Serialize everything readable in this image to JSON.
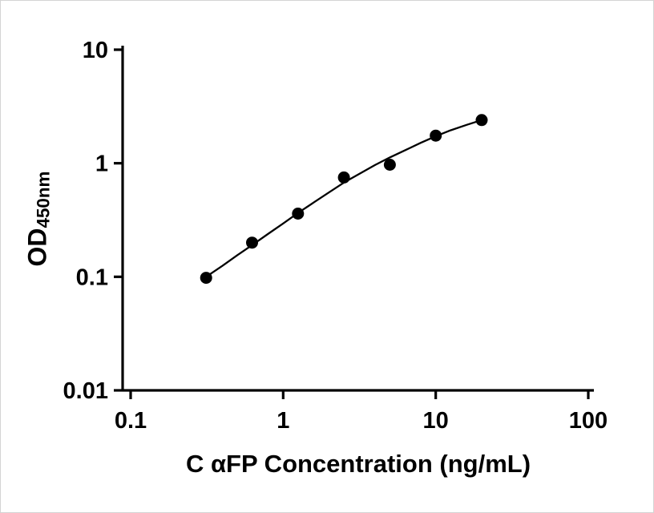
{
  "chart_data": {
    "type": "scatter",
    "title": "",
    "xlabel": "C αFP Concentration (ng/mL)",
    "ylabel_main": "OD",
    "ylabel_sub": "450nm",
    "x_scale": "log",
    "y_scale": "log",
    "xlim": [
      0.1,
      100
    ],
    "ylim": [
      0.01,
      10
    ],
    "x_ticks": [
      0.1,
      1,
      10,
      100
    ],
    "x_tick_labels": [
      "0.1",
      "1",
      "10",
      "100"
    ],
    "y_ticks": [
      0.01,
      0.1,
      1,
      10
    ],
    "y_tick_labels": [
      "0.01",
      "0.1",
      "1",
      "10"
    ],
    "grid": false,
    "legend": "none",
    "series": [
      {
        "name": "standard curve data points",
        "x": [
          0.3125,
          0.625,
          1.25,
          2.5,
          5,
          10,
          20
        ],
        "y": [
          0.098,
          0.2,
          0.36,
          0.75,
          0.97,
          1.75,
          2.4
        ],
        "marker": "filled-circle",
        "marker_color": "#000000"
      }
    ],
    "fit_curve": {
      "name": "fitted curve",
      "color": "#000000",
      "x": [
        0.3125,
        0.4,
        0.5,
        0.625,
        0.8,
        1.0,
        1.25,
        1.6,
        2.0,
        2.5,
        3.2,
        4.0,
        5.0,
        6.4,
        8.0,
        10.0,
        12.5,
        16.0,
        20.0
      ],
      "y": [
        0.1,
        0.125,
        0.155,
        0.19,
        0.24,
        0.295,
        0.365,
        0.455,
        0.555,
        0.675,
        0.815,
        0.965,
        1.125,
        1.315,
        1.515,
        1.73,
        1.95,
        2.18,
        2.4
      ]
    }
  },
  "colors": {
    "background": "#ffffff",
    "axis": "#000000",
    "point": "#000000",
    "curve": "#000000"
  }
}
